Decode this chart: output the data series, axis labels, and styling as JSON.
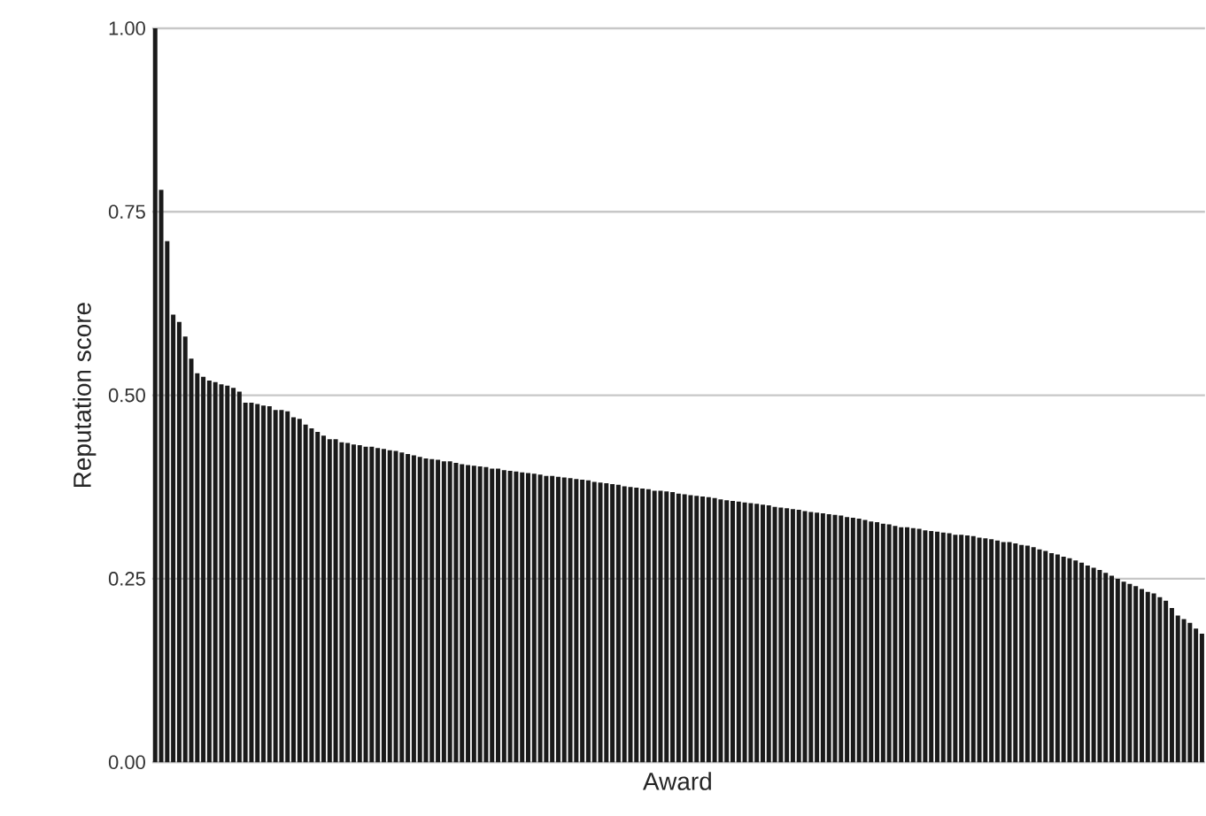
{
  "chart_data": {
    "type": "bar",
    "xlabel": "Award",
    "ylabel": "Reputation score",
    "categories": [
      null,
      null,
      null,
      null,
      null,
      null,
      null,
      null,
      null,
      null,
      null,
      null,
      null,
      null,
      null,
      null,
      null,
      null,
      null,
      null,
      null,
      null,
      null,
      null,
      null,
      null,
      null,
      null,
      null,
      null,
      null,
      null,
      null,
      null,
      null,
      null,
      null,
      null,
      null,
      null,
      null,
      null,
      null,
      null,
      null,
      null,
      null,
      null,
      null,
      null,
      null,
      null,
      null,
      null,
      null,
      null,
      null,
      null,
      null,
      null,
      null,
      null,
      null,
      null,
      null,
      null,
      null,
      null,
      null,
      null,
      null,
      null,
      null,
      null,
      null,
      null,
      null,
      null,
      null,
      null,
      null,
      null,
      null,
      null,
      null,
      null,
      null,
      null,
      null,
      null,
      null,
      null,
      null,
      null,
      null,
      null,
      null,
      null,
      null,
      null,
      null,
      null,
      null,
      null,
      null,
      null,
      null,
      null,
      null,
      null,
      null,
      null,
      null,
      null,
      null,
      null,
      null,
      null,
      null,
      null,
      null,
      null,
      null,
      null,
      null,
      null,
      null,
      null,
      null,
      null,
      null,
      null,
      null,
      null,
      null,
      null,
      null,
      null,
      null,
      null,
      null,
      null,
      null,
      null,
      null,
      null,
      null,
      null,
      null,
      null,
      null,
      null,
      null,
      null,
      null,
      null,
      null,
      null,
      null,
      null,
      null,
      null,
      null,
      null,
      null,
      null,
      null,
      null,
      null,
      null,
      null,
      null,
      null,
      null,
      null
    ],
    "values": [
      1.0,
      0.78,
      0.71,
      0.61,
      0.6,
      0.58,
      0.55,
      0.53,
      0.525,
      0.52,
      0.518,
      0.515,
      0.513,
      0.51,
      0.505,
      0.49,
      0.49,
      0.488,
      0.486,
      0.485,
      0.48,
      0.48,
      0.478,
      0.47,
      0.468,
      0.46,
      0.455,
      0.45,
      0.445,
      0.44,
      0.44,
      0.436,
      0.435,
      0.433,
      0.432,
      0.43,
      0.43,
      0.428,
      0.427,
      0.425,
      0.424,
      0.422,
      0.42,
      0.418,
      0.416,
      0.414,
      0.413,
      0.412,
      0.41,
      0.41,
      0.408,
      0.406,
      0.405,
      0.404,
      0.403,
      0.402,
      0.4,
      0.4,
      0.398,
      0.397,
      0.396,
      0.395,
      0.394,
      0.393,
      0.392,
      0.39,
      0.39,
      0.389,
      0.388,
      0.387,
      0.386,
      0.385,
      0.384,
      0.382,
      0.381,
      0.38,
      0.379,
      0.378,
      0.376,
      0.375,
      0.374,
      0.373,
      0.372,
      0.37,
      0.37,
      0.369,
      0.368,
      0.366,
      0.365,
      0.364,
      0.363,
      0.362,
      0.361,
      0.36,
      0.358,
      0.357,
      0.356,
      0.355,
      0.354,
      0.353,
      0.352,
      0.351,
      0.35,
      0.348,
      0.347,
      0.346,
      0.345,
      0.344,
      0.342,
      0.341,
      0.34,
      0.339,
      0.338,
      0.337,
      0.336,
      0.334,
      0.333,
      0.332,
      0.33,
      0.328,
      0.327,
      0.325,
      0.324,
      0.322,
      0.32,
      0.32,
      0.319,
      0.318,
      0.316,
      0.315,
      0.314,
      0.313,
      0.312,
      0.31,
      0.31,
      0.309,
      0.308,
      0.306,
      0.305,
      0.304,
      0.302,
      0.3,
      0.3,
      0.298,
      0.296,
      0.295,
      0.293,
      0.29,
      0.288,
      0.285,
      0.283,
      0.28,
      0.278,
      0.275,
      0.272,
      0.268,
      0.265,
      0.262,
      0.258,
      0.254,
      0.25,
      0.246,
      0.243,
      0.24,
      0.236,
      0.232,
      0.23,
      0.225,
      0.22,
      0.21,
      0.2,
      0.195,
      0.19,
      0.182,
      0.175
    ],
    "color": "#1a1a1a",
    "ylim": [
      0,
      1
    ],
    "yticks": [
      {
        "value": 0,
        "label": "0.00"
      },
      {
        "value": 0.25,
        "label": "0.25"
      },
      {
        "value": 0.5,
        "label": "0.50"
      },
      {
        "value": 0.75,
        "label": "0.75"
      },
      {
        "value": 1,
        "label": "1.00"
      }
    ],
    "grid": "y"
  }
}
